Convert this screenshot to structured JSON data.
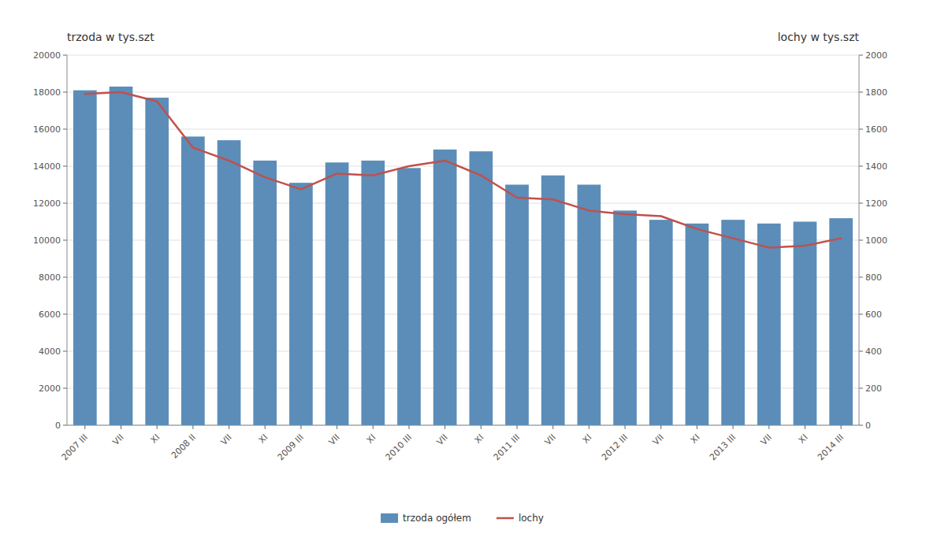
{
  "chart_data": {
    "type": "bar",
    "y_label": "trzoda w tys.szt",
    "y2_label": "lochy w tys.szt",
    "categories": [
      "2007 III",
      "VII",
      "XI",
      "2008 II",
      "VII",
      "XI",
      "2009 III",
      "VII",
      "XI",
      "2010 III",
      "VII",
      "XI",
      "2011 III",
      "VII",
      "XI",
      "2012 III",
      "VII",
      "XI",
      "2013 III",
      "VII",
      "XI",
      "2014 III"
    ],
    "series": [
      {
        "name": "trzoda ogółem",
        "type": "bar",
        "color": "#5B8DB8",
        "values": [
          18100,
          18300,
          17700,
          15600,
          15400,
          14300,
          13100,
          14200,
          14300,
          13900,
          14900,
          14800,
          13000,
          13500,
          13000,
          11600,
          11100,
          10900,
          11100,
          10900,
          11000,
          11186
        ]
      },
      {
        "name": "lochy",
        "type": "line",
        "axis": "y2",
        "color": "#C0504D",
        "values": [
          1790,
          1800,
          1750,
          1500,
          1430,
          1340,
          1275,
          1360,
          1350,
          1400,
          1430,
          1350,
          1230,
          1220,
          1160,
          1140,
          1130,
          1060,
          1010,
          960,
          970,
          1010
        ]
      }
    ],
    "ylim": [
      0,
      20000
    ],
    "yticks": [
      0,
      2000,
      4000,
      6000,
      8000,
      10000,
      12000,
      14000,
      16000,
      18000,
      20000
    ],
    "y2lim": [
      0,
      2000
    ],
    "y2ticks": [
      0,
      200,
      400,
      600,
      800,
      1000,
      1200,
      1400,
      1600,
      1800,
      2000
    ],
    "grid": true,
    "legend": "bottom"
  }
}
